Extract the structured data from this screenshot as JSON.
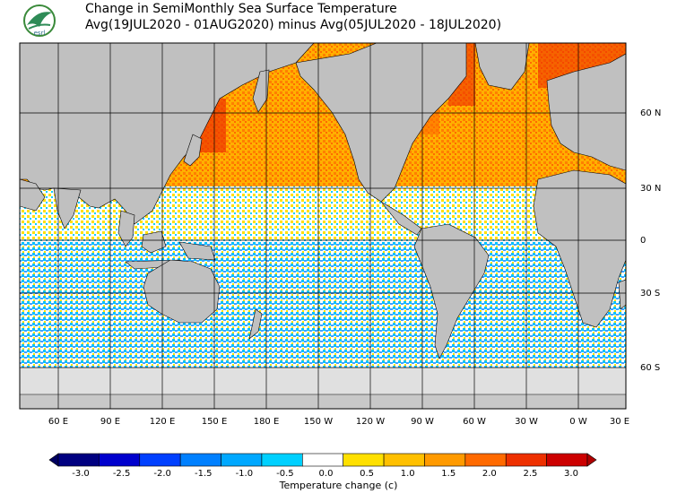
{
  "title": {
    "line1": "Change in SemiMonthly Sea Surface Temperature",
    "line2": "Avg(19JUL2020 - 01AUG2020) minus Avg(05JUL2020 - 18JUL2020)"
  },
  "logo": {
    "text": "esrl"
  },
  "map": {
    "lon_labels": [
      "60 E",
      "90 E",
      "120 E",
      "150 E",
      "180 E",
      "150 W",
      "120 W",
      "90 W",
      "60 W",
      "30 W",
      "0 W",
      "30 E"
    ],
    "lat_labels": [
      "60 N",
      "30 N",
      "0",
      "30 S",
      "60 S"
    ]
  },
  "legend": {
    "title": "Temperature change  (c)",
    "ticks": [
      "-3.0",
      "-2.5",
      "-2.0",
      "-1.5",
      "-1.0",
      "-0.5",
      "0.0",
      "0.5",
      "1.0",
      "1.5",
      "2.0",
      "2.5",
      "3.0"
    ],
    "colors": [
      "#000080",
      "#0000cd",
      "#0040ff",
      "#0080ff",
      "#00a8ff",
      "#00d0ff",
      "#ffffff",
      "#ffe000",
      "#ffc000",
      "#ff9a00",
      "#ff6a00",
      "#ee3000",
      "#cc0000"
    ],
    "low_arrow_color": "#000060",
    "high_arrow_color": "#b00000"
  },
  "colors": {
    "land": "#c0c0c0",
    "ice": "#e0e0e0",
    "warm": "#ff9a00",
    "cool": "#00b4ff"
  }
}
